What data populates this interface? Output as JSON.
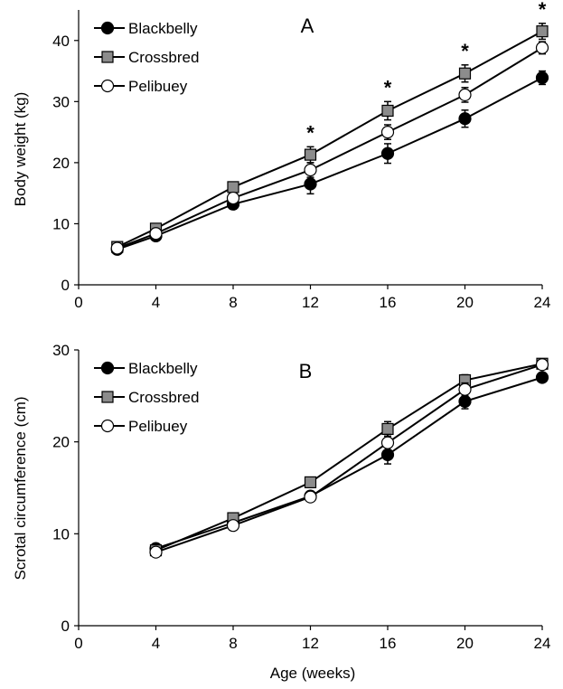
{
  "figure": {
    "xlabel_shared": "Age (weeks)"
  },
  "chart_data": [
    {
      "type": "line",
      "panel_letter": "A",
      "xlabel": "",
      "ylabel": "Body weight (kg)",
      "xlim": [
        0,
        24
      ],
      "ylim": [
        0,
        45
      ],
      "xticks": [
        0,
        4,
        8,
        12,
        16,
        20,
        24
      ],
      "yticks": [
        0,
        10,
        20,
        30,
        40
      ],
      "legend_position": "top-left",
      "grid": false,
      "x": [
        2,
        4,
        8,
        12,
        16,
        20,
        24
      ],
      "significance_marker": "*",
      "significance_x": [
        12,
        16,
        20,
        24
      ],
      "series": [
        {
          "name": "Blackbelly",
          "marker": "circle",
          "fill": "#000000",
          "values": [
            5.8,
            8.0,
            13.2,
            16.5,
            21.5,
            27.2,
            33.9
          ],
          "errors": [
            0.5,
            0.5,
            0.8,
            1.6,
            1.6,
            1.4,
            1.1
          ]
        },
        {
          "name": "Crossbred",
          "marker": "square",
          "fill": "#8c8c8c",
          "values": [
            6.2,
            9.2,
            16.0,
            21.3,
            28.5,
            34.6,
            41.5
          ],
          "errors": [
            0.5,
            0.5,
            0.8,
            1.3,
            1.5,
            1.4,
            1.3
          ]
        },
        {
          "name": "Pelibuey",
          "marker": "circle",
          "fill": "#ffffff",
          "values": [
            6.0,
            8.4,
            14.2,
            18.8,
            25.0,
            31.1,
            38.8
          ],
          "errors": [
            0.5,
            0.5,
            0.7,
            1.2,
            1.2,
            1.2,
            1.0
          ]
        }
      ]
    },
    {
      "type": "line",
      "panel_letter": "B",
      "xlabel": "Age (weeks)",
      "ylabel": "Scrotal circumference (cm)",
      "xlim": [
        0,
        24
      ],
      "ylim": [
        0,
        30
      ],
      "xticks": [
        0,
        4,
        8,
        12,
        16,
        20,
        24
      ],
      "yticks": [
        0,
        10,
        20,
        30
      ],
      "legend_position": "top-left",
      "grid": false,
      "x": [
        4,
        8,
        12,
        16,
        20,
        24
      ],
      "series": [
        {
          "name": "Blackbelly",
          "marker": "circle",
          "fill": "#000000",
          "values": [
            8.4,
            11.2,
            14.1,
            18.6,
            24.4,
            27.0
          ],
          "errors": [
            0.3,
            0.4,
            0.5,
            1.0,
            0.8,
            0.5
          ]
        },
        {
          "name": "Crossbred",
          "marker": "square",
          "fill": "#8c8c8c",
          "values": [
            8.2,
            11.7,
            15.6,
            21.4,
            26.7,
            28.5
          ],
          "errors": [
            0.3,
            0.4,
            0.5,
            0.8,
            0.6,
            0.5
          ]
        },
        {
          "name": "Pelibuey",
          "marker": "circle",
          "fill": "#ffffff",
          "values": [
            8.0,
            10.9,
            14.0,
            19.9,
            25.7,
            28.4
          ],
          "errors": [
            0.3,
            0.4,
            0.5,
            0.9,
            0.7,
            0.5
          ]
        }
      ]
    }
  ]
}
